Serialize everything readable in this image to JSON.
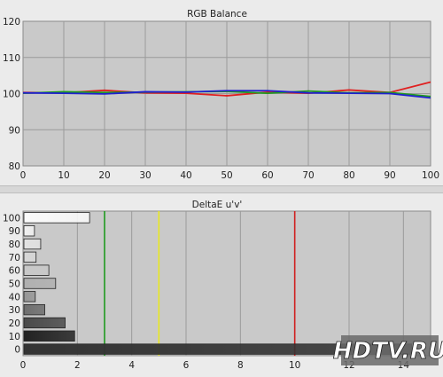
{
  "colors": {
    "panel_bg": "#ebebeb",
    "plot_bg": "#c9c9c9",
    "grid": "#9a9a9a",
    "red": "#e02020",
    "green": "#1f9a1f",
    "blue": "#2020d0",
    "yellow": "#e8e820",
    "dark_red": "#d02020"
  },
  "logo": "HDTV.RU",
  "chart_data": [
    {
      "type": "line",
      "title": "RGB Balance",
      "xlim": [
        0,
        100
      ],
      "ylim": [
        80,
        120
      ],
      "x_ticks": [
        "0",
        "10",
        "20",
        "30",
        "40",
        "50",
        "60",
        "70",
        "80",
        "90",
        "100"
      ],
      "y_ticks": [
        "80",
        "90",
        "100",
        "110",
        "120"
      ],
      "grid": true,
      "x": [
        0,
        10,
        20,
        30,
        40,
        50,
        60,
        70,
        80,
        90,
        100
      ],
      "series": [
        {
          "color": "red",
          "values": [
            100.3,
            100.2,
            100.9,
            100.2,
            100.1,
            99.4,
            100.4,
            100.1,
            101.0,
            100.3,
            103.2
          ]
        },
        {
          "color": "green",
          "values": [
            100.1,
            100.5,
            100.3,
            100.4,
            100.5,
            100.6,
            100.1,
            100.7,
            100.2,
            100.3,
            99.2
          ]
        },
        {
          "color": "blue",
          "values": [
            100.2,
            100.1,
            99.9,
            100.5,
            100.4,
            100.8,
            100.8,
            100.2,
            100.1,
            100.0,
            98.8
          ]
        }
      ]
    },
    {
      "type": "bar",
      "orientation": "horizontal",
      "title": "DeltaE u'v'",
      "xlim": [
        0,
        15
      ],
      "x_ticks": [
        "0",
        "2",
        "4",
        "6",
        "8",
        "10",
        "12",
        "14"
      ],
      "categories": [
        "100",
        "90",
        "80",
        "70",
        "60",
        "50",
        "40",
        "30",
        "20",
        "10",
        "0"
      ],
      "values": [
        2.45,
        0.42,
        0.65,
        0.48,
        0.95,
        1.2,
        0.45,
        0.8,
        1.55,
        1.9,
        14.3
      ],
      "bar_shades": [
        "#fafafa",
        "#f0f0f0",
        "#e2e2e2",
        "#d6d6d6",
        "#c8c8c8",
        "#b0b0b0",
        "#969696",
        "#6e6e6e",
        "#4a4a4a",
        "#222222",
        "#333333"
      ],
      "thresholds": [
        {
          "value": 3,
          "color": "green"
        },
        {
          "value": 5,
          "color": "yellow"
        },
        {
          "value": 10,
          "color": "dark_red"
        }
      ],
      "grid": true
    }
  ]
}
